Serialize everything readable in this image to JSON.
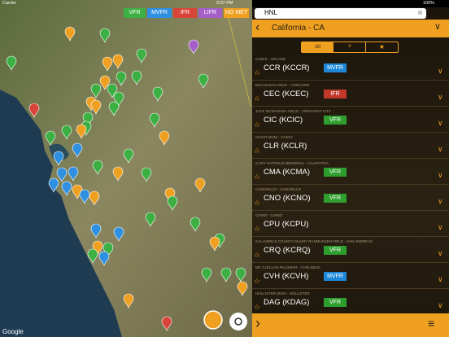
{
  "status_bar": {
    "carrier": "Carrier",
    "time": "3:07 PM",
    "battery": "100%"
  },
  "map": {
    "legend": [
      "VFR",
      "MVFR",
      "IFR",
      "LIFR",
      "NO MET"
    ],
    "attribution": "Google"
  },
  "search": {
    "query": "HNL"
  },
  "header": {
    "title": "California - CA"
  },
  "filter": {
    "all": "All"
  },
  "stations": [
    {
      "name": "CABLE - UPLAND",
      "code": "CCR (KCCR)",
      "category": "MVFR"
    },
    {
      "name": "BUCHANAN FIELD - CONCORD",
      "code": "CEC (KCEC)",
      "category": "IFR"
    },
    {
      "name": "JACK MCNAMARA FIELD - CRESCENT CITY",
      "code": "CIC (KCIC)",
      "category": "VFR"
    },
    {
      "name": "CHICO MUNI - CHICO",
      "code": "CLR (KCLR)"
    },
    {
      "name": "CLIFF HATFIELD MEMORIAL - CALIPATRIA",
      "code": "CMA (KCMA)",
      "category": "VFR"
    },
    {
      "name": "CAMARILLO - CAMARILLO",
      "code": "CNO (KCNO)",
      "category": "VFR"
    },
    {
      "name": "CHINO - CHINO",
      "code": "CPU (KCPU)"
    },
    {
      "name": "CALAVERAS COUNTY MAURY RASMUSSEN FIELD - SAN ANDREAS",
      "code": "CRQ (KCRQ)",
      "category": "VFR"
    },
    {
      "name": "MC CLELLAN-PALOMAR - CARLSBAD",
      "code": "CVH (KCVH)",
      "category": "MVFR"
    },
    {
      "name": "HOLLISTER MUNI - HOLLISTER",
      "code": "DAG (KDAG)",
      "category": "VFR"
    }
  ]
}
